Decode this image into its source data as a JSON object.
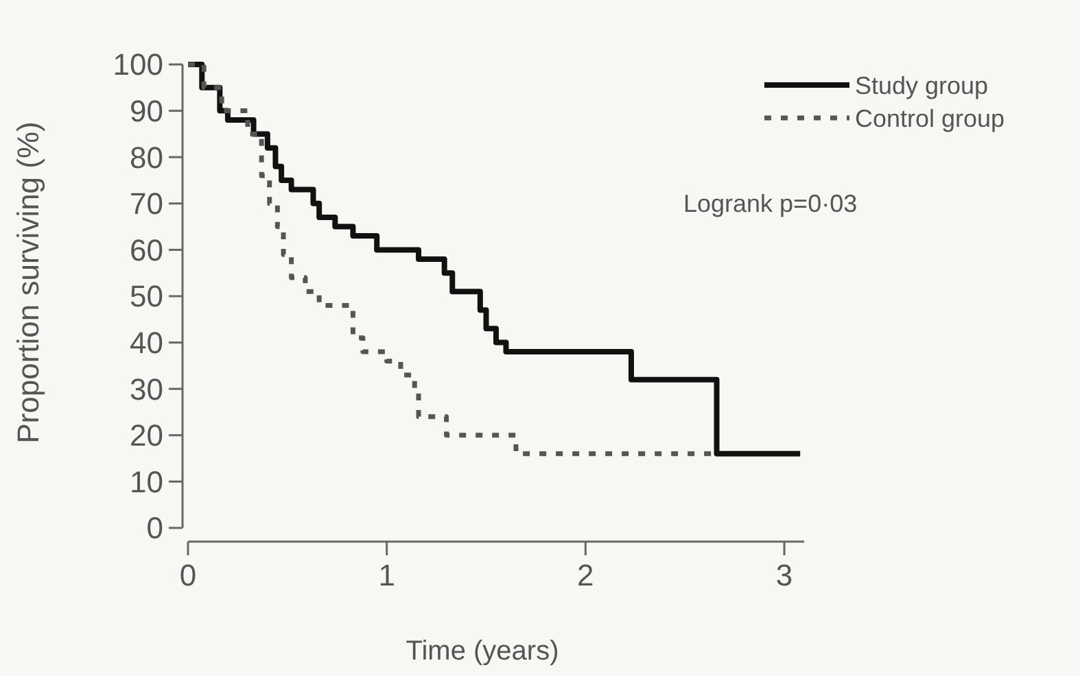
{
  "chart_data": {
    "type": "step",
    "xlabel": "Time (years)",
    "ylabel": "Proportion surviving (%)",
    "xlim": [
      0,
      3.1
    ],
    "xticks": [
      0,
      1,
      2,
      3
    ],
    "ylim": [
      0,
      100
    ],
    "yticks": [
      0,
      10,
      20,
      30,
      40,
      50,
      60,
      70,
      80,
      90,
      100
    ],
    "grid": false,
    "legend": "top right",
    "marker": "none",
    "annotations": [
      "Logrank p=0·03"
    ],
    "series": [
      {
        "name": "Study group",
        "color": "#111111",
        "line_style": "solid",
        "x": [
          0,
          0.07,
          0.16,
          0.2,
          0.33,
          0.4,
          0.44,
          0.47,
          0.52,
          0.63,
          0.66,
          0.74,
          0.83,
          0.95,
          1.16,
          1.29,
          1.33,
          1.47,
          1.5,
          1.55,
          1.6,
          2.23,
          2.66,
          3.08
        ],
        "values": [
          100,
          95,
          90,
          88,
          85,
          82,
          78,
          75,
          73,
          70,
          67,
          65,
          63,
          60,
          58,
          55,
          51,
          47,
          43,
          40,
          38,
          32,
          16,
          16
        ]
      },
      {
        "name": "Control group",
        "color": "#555555",
        "line_style": "dotted",
        "x": [
          0,
          0.08,
          0.17,
          0.3,
          0.37,
          0.41,
          0.45,
          0.48,
          0.52,
          0.59,
          0.66,
          0.83,
          0.88,
          1.0,
          1.07,
          1.14,
          1.16,
          1.3,
          1.65,
          2.66
        ],
        "values": [
          100,
          95,
          90,
          85,
          76,
          70,
          65,
          59,
          54,
          51,
          48,
          41,
          38,
          36,
          33,
          30,
          24,
          20,
          16,
          16
        ]
      }
    ]
  }
}
